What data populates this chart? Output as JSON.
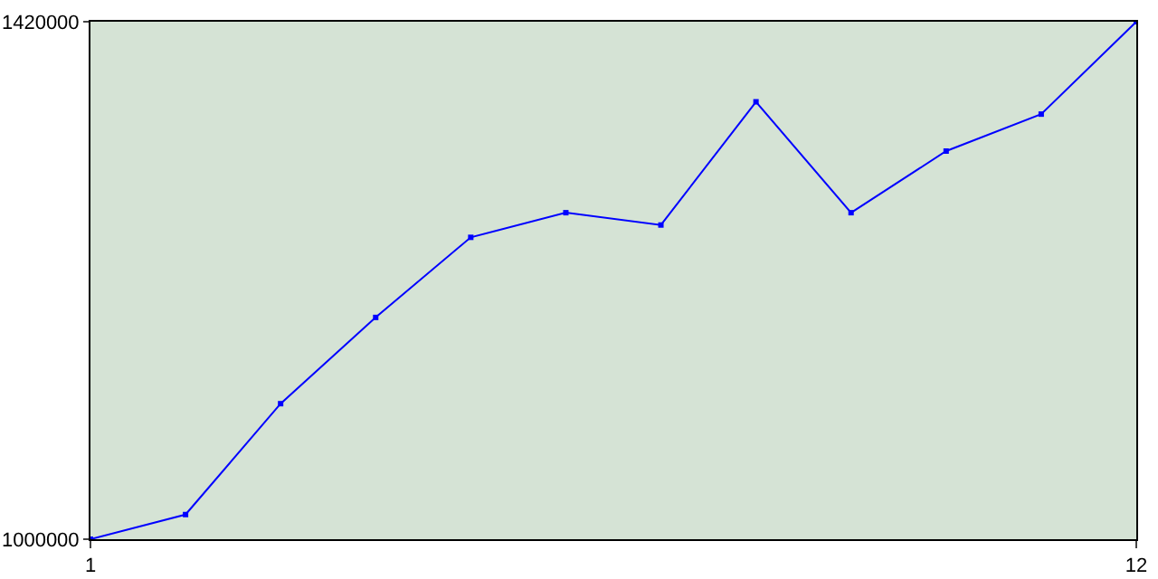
{
  "chart_data": {
    "type": "line",
    "x": [
      1,
      2,
      3,
      4,
      5,
      6,
      7,
      8,
      9,
      10,
      11,
      12
    ],
    "series": [
      {
        "color": "#0000ff",
        "values": [
          1000000,
          1020000,
          1110000,
          1180000,
          1245000,
          1265000,
          1255000,
          1355000,
          1265000,
          1315000,
          1345000,
          1420000
        ]
      }
    ],
    "xlim": [
      1,
      12
    ],
    "xticks": [
      1,
      12
    ],
    "ylim": [
      1000000,
      1420000
    ],
    "yticks": [
      1000000,
      1420000
    ],
    "legend": false,
    "marker": "square",
    "line_style": "solid"
  }
}
